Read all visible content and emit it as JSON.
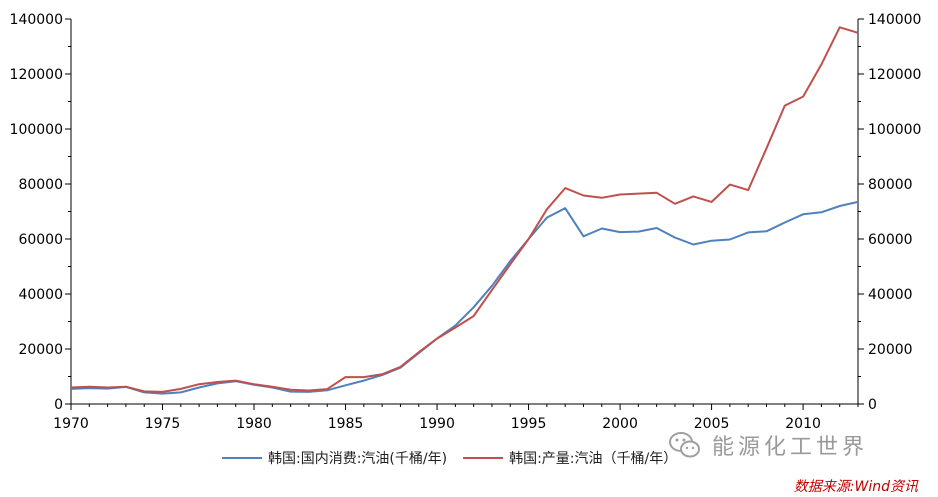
{
  "chart_data": {
    "type": "line",
    "x": [
      1970,
      1971,
      1972,
      1973,
      1974,
      1975,
      1976,
      1977,
      1978,
      1979,
      1980,
      1981,
      1982,
      1983,
      1984,
      1985,
      1986,
      1987,
      1988,
      1989,
      1990,
      1991,
      1992,
      1993,
      1994,
      1995,
      1996,
      1997,
      1998,
      1999,
      2000,
      2001,
      2002,
      2003,
      2004,
      2005,
      2006,
      2007,
      2008,
      2009,
      2010,
      2011,
      2012,
      2013
    ],
    "xlim": [
      1970,
      2013
    ],
    "x_ticks": [
      "1970",
      "1975",
      "1980",
      "1985",
      "1990",
      "1995",
      "2000",
      "2005",
      "2010"
    ],
    "ylim": [
      0,
      140000
    ],
    "y_ticks": [
      "0",
      "20000",
      "40000",
      "60000",
      "80000",
      "100000",
      "120000",
      "140000"
    ],
    "y_right_ticks": [
      "0",
      "20000",
      "40000",
      "60000",
      "80000",
      "100000",
      "120000",
      "140000"
    ],
    "grid": false,
    "legend_position": "bottom",
    "series": [
      {
        "name": "韩国:国内消费:汽油(千桶/年)",
        "color": "#4f81bd",
        "values": [
          5500,
          5800,
          5600,
          6200,
          4200,
          3800,
          4200,
          6000,
          7500,
          8300,
          7000,
          6000,
          4500,
          4400,
          5000,
          6800,
          8500,
          10500,
          13200,
          18500,
          23800,
          28500,
          35200,
          43000,
          52000,
          60000,
          67800,
          71200,
          61000,
          63800,
          62500,
          62700,
          64000,
          60500,
          58000,
          59400,
          59800,
          62400,
          62800,
          66000,
          69000,
          69700,
          72000,
          73500
        ]
      },
      {
        "name": "韩国:产量:汽油（千桶/年）",
        "color": "#c0504d",
        "values": [
          6000,
          6300,
          6000,
          6300,
          4600,
          4400,
          5500,
          7200,
          8000,
          8500,
          7200,
          6300,
          5200,
          4900,
          5400,
          9800,
          9800,
          10800,
          13500,
          18800,
          23800,
          27800,
          32000,
          41500,
          50800,
          60000,
          70800,
          78500,
          75800,
          75000,
          76200,
          76500,
          76800,
          72800,
          75500,
          73500,
          79800,
          77800,
          93000,
          108500,
          111800,
          123500,
          137000,
          135000
        ]
      }
    ]
  },
  "watermark_text": "能源化工世界",
  "source_text": "数据来源:Wind资讯",
  "colors": {
    "axis": "#000000",
    "source": "#c00000",
    "watermark": "#9a9a9a"
  }
}
